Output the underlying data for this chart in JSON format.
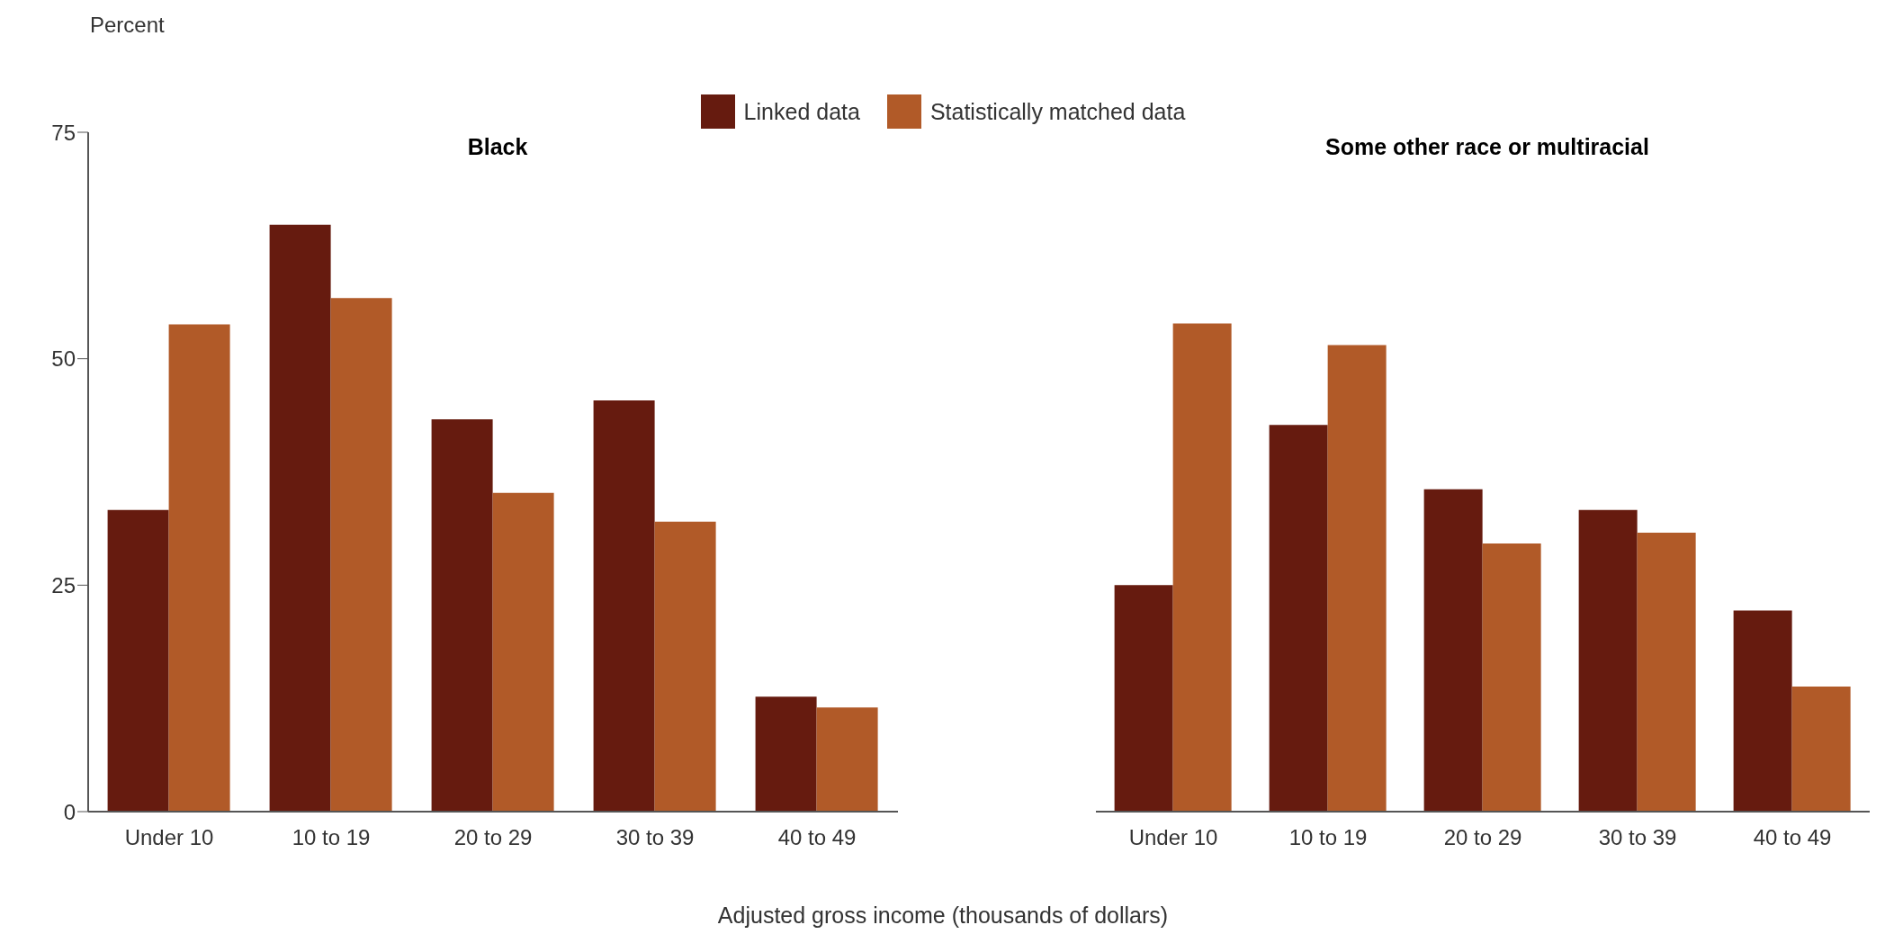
{
  "chart_data": [
    {
      "type": "bar",
      "title": "Black",
      "ylabel": "Percent",
      "xlabel": "Adjusted gross income (thousands of dollars)",
      "categories": [
        "Under 10",
        "10 to 19",
        "20 to 29",
        "30 to 39",
        "40 to 49"
      ],
      "series": [
        {
          "name": "Linked data",
          "color": "#661b0f",
          "values": [
            33.3,
            64.8,
            43.3,
            45.4,
            12.7
          ]
        },
        {
          "name": "Statistically matched data",
          "color": "#b15a28",
          "values": [
            53.8,
            56.7,
            35.2,
            32.0,
            11.5
          ]
        }
      ],
      "ylim": [
        0,
        75
      ],
      "yticks": [
        0,
        25,
        50,
        75
      ],
      "legend": "top",
      "grid": false
    },
    {
      "type": "bar",
      "title": "Some other race or multiracial",
      "categories": [
        "Under 10",
        "10 to 19",
        "20 to 29",
        "30 to 39",
        "40 to 49"
      ],
      "series": [
        {
          "color": "#661b0f",
          "values": [
            25.0,
            42.7,
            35.6,
            33.3,
            22.2
          ]
        },
        {
          "color": "#b15a28",
          "values": [
            53.9,
            51.5,
            29.6,
            30.8,
            13.8
          ]
        }
      ],
      "ylim": [
        0,
        75
      ],
      "yticks": [
        0,
        25,
        50,
        75
      ],
      "tick_labels": "x",
      "grid": false
    }
  ]
}
